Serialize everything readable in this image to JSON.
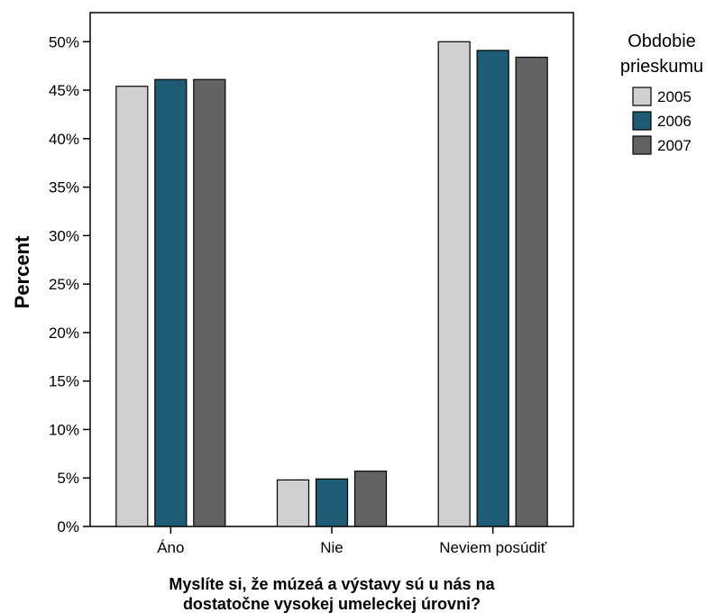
{
  "chart_data": {
    "type": "bar",
    "xlabel_lines": [
      "Myslíte si, že múzeá a výstavy sú u nás na",
      "dostatočne vysokej umeleckej úrovni?"
    ],
    "ylabel": "Percent",
    "categories": [
      "Áno",
      "Nie",
      "Neviem posúdiť"
    ],
    "ylim": [
      0,
      53
    ],
    "yticks": [
      "0%",
      "5%",
      "10%",
      "15%",
      "20%",
      "25%",
      "30%",
      "35%",
      "40%",
      "45%",
      "50%"
    ],
    "legend_title_lines": [
      "Obdobie",
      "prieskumu"
    ],
    "legend_position": "right",
    "grid": false,
    "series": [
      {
        "name": "2005",
        "color": "#d0d0d0",
        "values": [
          45.4,
          4.8,
          50.0
        ]
      },
      {
        "name": "2006",
        "color": "#1e5c76",
        "values": [
          46.1,
          4.9,
          49.1
        ]
      },
      {
        "name": "2007",
        "color": "#636363",
        "values": [
          46.1,
          5.7,
          48.4
        ]
      }
    ]
  }
}
